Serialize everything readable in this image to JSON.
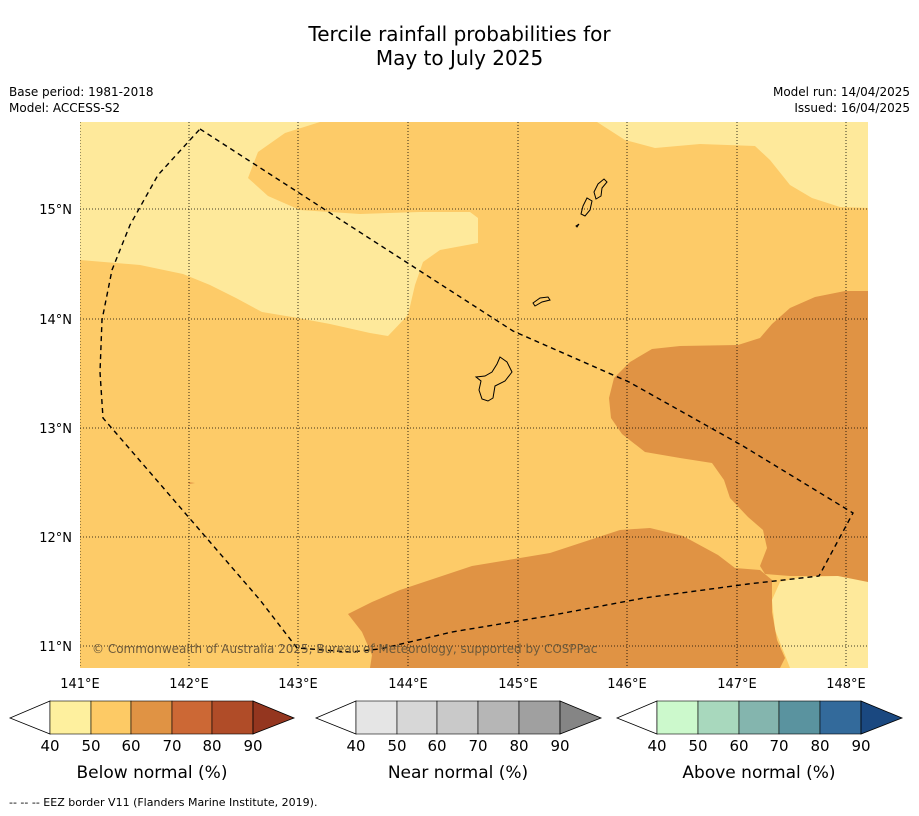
{
  "title": {
    "line1": "Tercile rainfall probabilities for",
    "line2": "May to July 2025"
  },
  "meta_left": {
    "base_period": "Base period: 1981-2018",
    "model": "Model: ACCESS-S2"
  },
  "meta_right": {
    "model_run": "Model run: 14/04/2025",
    "issued": "Issued: 16/04/2025"
  },
  "map": {
    "lon_labels": [
      "141°E",
      "142°E",
      "143°E",
      "144°E",
      "145°E",
      "146°E",
      "147°E",
      "148°E"
    ],
    "lat_labels": [
      "15°N",
      "14°N",
      "13°N",
      "12°N",
      "11°N"
    ],
    "copyright": "© Commonwealth of Australia 2025, Bureau of Meteorology, supported by COSPPac",
    "region_colors": {
      "below_40_50": "#fee99b",
      "below_50_60": "#fdcb68",
      "below_60_70": "#e09344"
    }
  },
  "legends": [
    {
      "label": "Below normal (%)",
      "ticks": [
        "40",
        "50",
        "60",
        "70",
        "80",
        "90"
      ],
      "colors": [
        "#fef09e",
        "#fdca65",
        "#e09344",
        "#cc6835",
        "#b04c28",
        "#94361f"
      ]
    },
    {
      "label": "Near normal (%)",
      "ticks": [
        "40",
        "50",
        "60",
        "70",
        "80",
        "90"
      ],
      "colors": [
        "#e5e5e5",
        "#d7d7d7",
        "#c9c9c9",
        "#b6b6b6",
        "#a0a0a0",
        "#858585"
      ]
    },
    {
      "label": "Above normal (%)",
      "ticks": [
        "40",
        "50",
        "60",
        "70",
        "80",
        "90"
      ],
      "colors": [
        "#ccf9cc",
        "#a8d8bd",
        "#84b5ae",
        "#5a939f",
        "#336a9b",
        "#1a4880"
      ]
    }
  ],
  "footnote": "--  --  -- EEZ border V11 (Flanders Marine Institute, 2019)."
}
